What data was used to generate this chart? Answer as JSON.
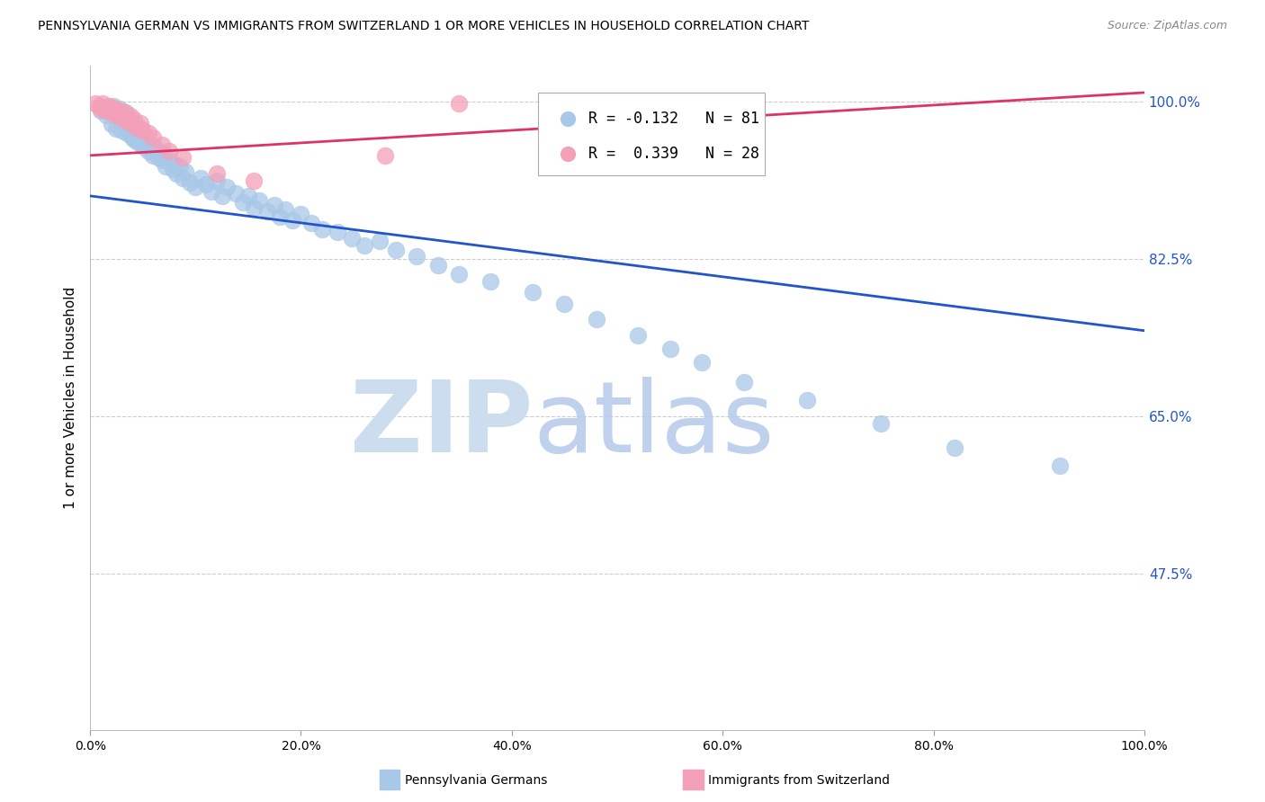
{
  "title": "PENNSYLVANIA GERMAN VS IMMIGRANTS FROM SWITZERLAND 1 OR MORE VEHICLES IN HOUSEHOLD CORRELATION CHART",
  "source": "Source: ZipAtlas.com",
  "ylabel": "1 or more Vehicles in Household",
  "xlim": [
    0.0,
    1.0
  ],
  "ylim": [
    0.3,
    1.04
  ],
  "ytick_positions": [
    0.475,
    0.65,
    0.825,
    1.0
  ],
  "ytick_labels": [
    "47.5%",
    "65.0%",
    "82.5%",
    "100.0%"
  ],
  "xtick_positions": [
    0.0,
    0.2,
    0.4,
    0.6,
    0.8,
    1.0
  ],
  "xtick_labels": [
    "0.0%",
    "20.0%",
    "40.0%",
    "60.0%",
    "80.0%",
    "100.0%"
  ],
  "legend_blue_r": "-0.132",
  "legend_blue_n": "81",
  "legend_pink_r": "0.339",
  "legend_pink_n": "28",
  "blue_label": "Pennsylvania Germans",
  "pink_label": "Immigrants from Switzerland",
  "blue_dot_color": "#a8c8e8",
  "pink_dot_color": "#f4a0b8",
  "blue_line_color": "#2255cc",
  "pink_line_color": "#dd3366",
  "grid_color": "#cccccc",
  "watermark_zip_color": "#ccddf0",
  "watermark_atlas_color": "#b8ccec",
  "blue_scatter_x": [
    0.01,
    0.015,
    0.02,
    0.02,
    0.022,
    0.025,
    0.025,
    0.028,
    0.03,
    0.03,
    0.032,
    0.034,
    0.035,
    0.035,
    0.038,
    0.04,
    0.04,
    0.042,
    0.044,
    0.045,
    0.046,
    0.048,
    0.05,
    0.05,
    0.052,
    0.055,
    0.058,
    0.06,
    0.062,
    0.065,
    0.068,
    0.07,
    0.072,
    0.075,
    0.078,
    0.08,
    0.082,
    0.085,
    0.088,
    0.09,
    0.095,
    0.1,
    0.105,
    0.11,
    0.115,
    0.12,
    0.125,
    0.13,
    0.138,
    0.145,
    0.15,
    0.155,
    0.16,
    0.168,
    0.175,
    0.18,
    0.185,
    0.192,
    0.2,
    0.21,
    0.22,
    0.235,
    0.248,
    0.26,
    0.275,
    0.29,
    0.31,
    0.33,
    0.35,
    0.38,
    0.42,
    0.45,
    0.48,
    0.52,
    0.55,
    0.58,
    0.62,
    0.68,
    0.75,
    0.82,
    0.92
  ],
  "blue_scatter_y": [
    0.99,
    0.985,
    0.975,
    0.99,
    0.995,
    0.97,
    0.985,
    0.992,
    0.968,
    0.98,
    0.975,
    0.988,
    0.965,
    0.978,
    0.97,
    0.96,
    0.972,
    0.958,
    0.965,
    0.955,
    0.962,
    0.97,
    0.95,
    0.96,
    0.955,
    0.945,
    0.952,
    0.94,
    0.948,
    0.938,
    0.935,
    0.942,
    0.928,
    0.935,
    0.925,
    0.93,
    0.92,
    0.928,
    0.915,
    0.922,
    0.91,
    0.905,
    0.915,
    0.908,
    0.9,
    0.912,
    0.895,
    0.905,
    0.898,
    0.888,
    0.895,
    0.882,
    0.89,
    0.878,
    0.885,
    0.872,
    0.88,
    0.868,
    0.875,
    0.865,
    0.858,
    0.855,
    0.848,
    0.84,
    0.845,
    0.835,
    0.828,
    0.818,
    0.808,
    0.8,
    0.788,
    0.775,
    0.758,
    0.74,
    0.725,
    0.71,
    0.688,
    0.668,
    0.642,
    0.615,
    0.595
  ],
  "pink_scatter_x": [
    0.005,
    0.008,
    0.01,
    0.012,
    0.015,
    0.018,
    0.02,
    0.022,
    0.025,
    0.028,
    0.03,
    0.032,
    0.035,
    0.038,
    0.04,
    0.042,
    0.045,
    0.048,
    0.05,
    0.055,
    0.06,
    0.068,
    0.075,
    0.088,
    0.12,
    0.155,
    0.28,
    0.35
  ],
  "pink_scatter_y": [
    0.998,
    0.995,
    0.992,
    0.998,
    0.99,
    0.995,
    0.988,
    0.993,
    0.985,
    0.99,
    0.982,
    0.988,
    0.978,
    0.984,
    0.975,
    0.98,
    0.97,
    0.976,
    0.968,
    0.965,
    0.96,
    0.952,
    0.945,
    0.938,
    0.92,
    0.912,
    0.94,
    0.998
  ],
  "blue_trendline_x": [
    0.0,
    1.0
  ],
  "blue_trendline_y": [
    0.895,
    0.745
  ],
  "pink_trendline_x": [
    0.0,
    1.0
  ],
  "pink_trendline_y": [
    0.94,
    1.01
  ]
}
